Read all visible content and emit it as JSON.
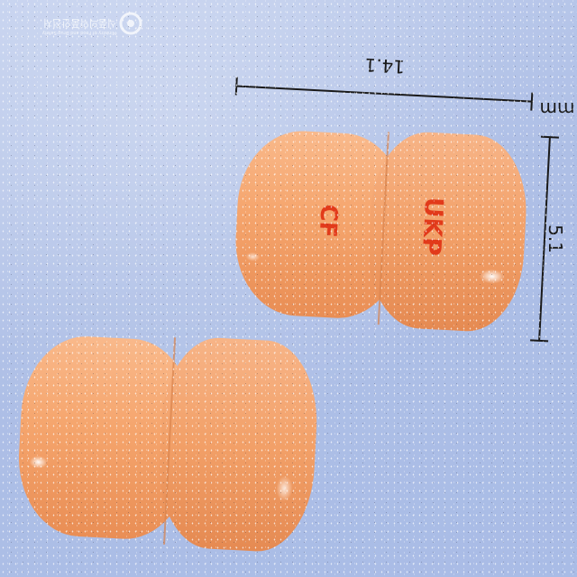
{
  "watermark": {
    "org_name_ko": "식품의약품안전처",
    "org_name_en": "Ministry of Food and Drug Safety"
  },
  "dimensions": {
    "length_label": "14.1",
    "width_label": "5.1",
    "unit_label": "mm"
  },
  "imprint": {
    "text_1": "UKP",
    "text_2": "CF"
  },
  "colors": {
    "background": "#b0c1e7",
    "capsule": "#f5a56d",
    "imprint": "#e23a1a"
  }
}
